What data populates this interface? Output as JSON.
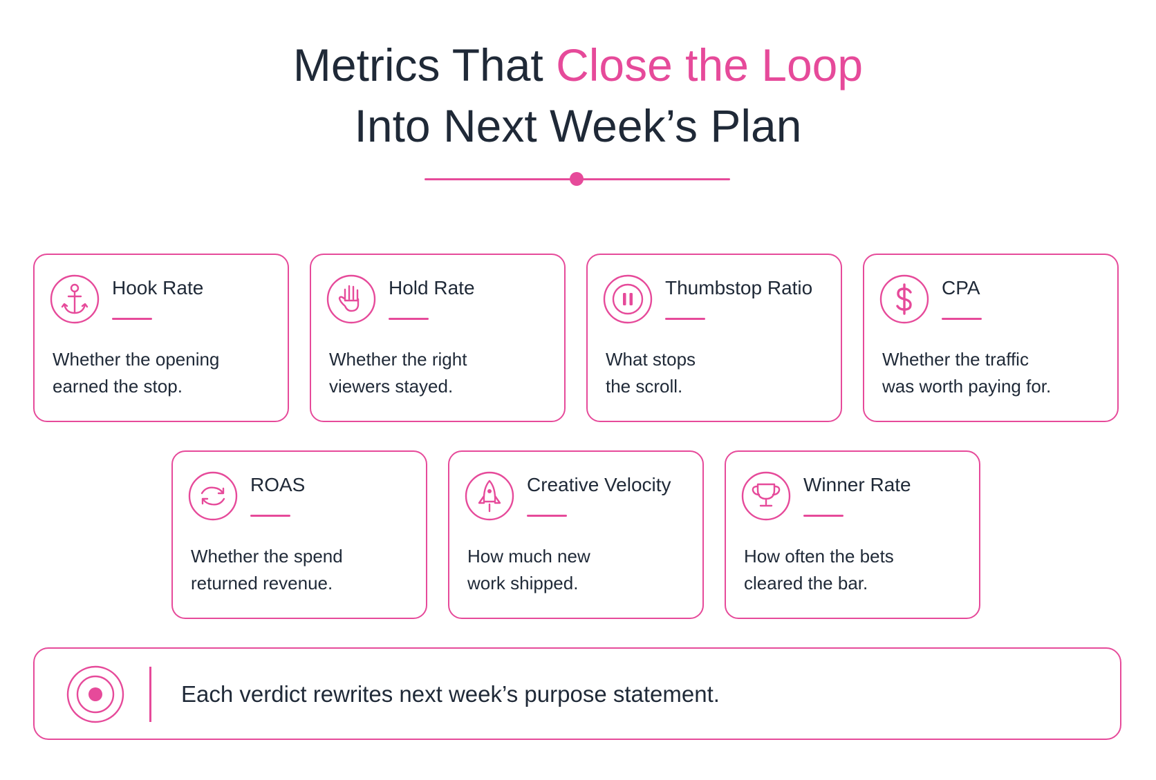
{
  "header": {
    "title_line1_plain": "Metrics That ",
    "title_line1_accent": "Close the Loop",
    "title_line2": "Into Next Week’s Plan"
  },
  "colors": {
    "accent": "#e64a9a",
    "text": "#1f2937",
    "background": "#ffffff"
  },
  "metrics": [
    {
      "name": "Hook Rate",
      "icon": "anchor-icon",
      "desc_line1": "Whether the opening",
      "desc_line2": "earned the stop."
    },
    {
      "name": "Hold Rate",
      "icon": "hand-icon",
      "desc_line1": "Whether the right",
      "desc_line2": "viewers stayed."
    },
    {
      "name": "Thumbstop Ratio",
      "icon": "pause-icon",
      "desc_line1": "What stops",
      "desc_line2": "the scroll."
    },
    {
      "name": "CPA",
      "icon": "dollar-icon",
      "desc_line1": "Whether the traffic",
      "desc_line2": "was worth paying for."
    },
    {
      "name": "ROAS",
      "icon": "cycle-arrows-icon",
      "desc_line1": "Whether the spend",
      "desc_line2": "returned revenue."
    },
    {
      "name": "Creative Velocity",
      "icon": "rocket-icon",
      "desc_line1": "How much new",
      "desc_line2": "work shipped."
    },
    {
      "name": "Winner Rate",
      "icon": "trophy-icon",
      "desc_line1": "How often the bets",
      "desc_line2": "cleared the bar."
    }
  ],
  "footer": {
    "icon": "target-icon",
    "text": "Each verdict rewrites next week’s purpose statement."
  }
}
